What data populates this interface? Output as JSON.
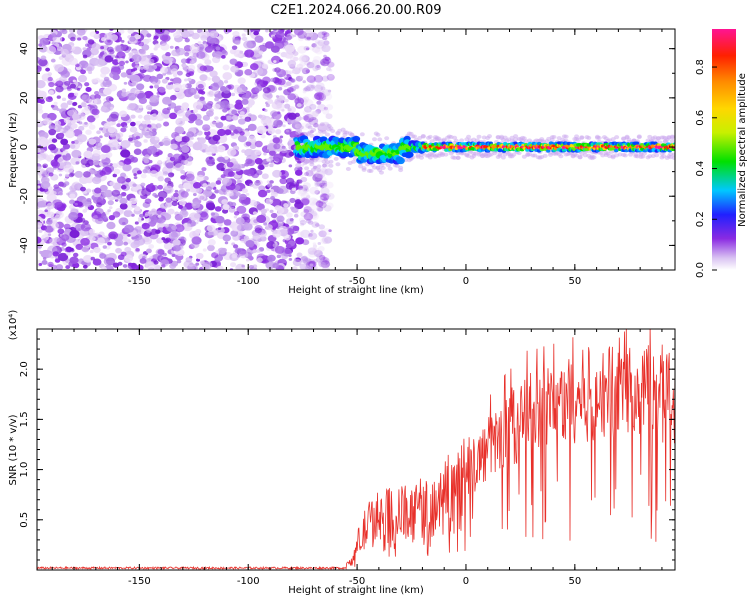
{
  "title": "C2E1.2024.066.20.00.R09",
  "colors": {
    "snr_line": "#e8302a",
    "speckle_low": "#8a2be2",
    "speckle_light": "#d9c2f2",
    "axis": "#000000"
  },
  "chart_data": [
    {
      "type": "heatmap",
      "xlabel": "Height of straight line (km)",
      "ylabel": "Frequency (Hz)",
      "xlim": [
        -197,
        96
      ],
      "ylim": [
        -50,
        48
      ],
      "x_ticks": [
        -150,
        -100,
        -50,
        0,
        50
      ],
      "x_tick_labels": [
        "-150",
        "-100",
        "-50",
        "0",
        "50"
      ],
      "y_ticks": [
        -40,
        -20,
        0,
        20,
        40
      ],
      "y_tick_labels": [
        "-40",
        "-20",
        "0",
        "20",
        "40"
      ],
      "noise_region_x": [
        -197,
        -68
      ],
      "signal_center_frequency": 0,
      "signal_start_x": -78,
      "colorbar": {
        "label": "Normalized spectral amplitude",
        "range": [
          0.0,
          0.95
        ],
        "ticks": [
          0.0,
          0.2,
          0.4,
          0.6,
          0.8
        ],
        "tick_labels": [
          "0.0",
          "0.2",
          "0.4",
          "0.6",
          "0.8"
        ],
        "colormap": "rainbow"
      }
    },
    {
      "type": "line",
      "xlabel": "Height of straight line (km)",
      "ylabel": "SNR (10 * v/v)",
      "y_multiplier": "(x10⁴)",
      "xlim": [
        -197,
        96
      ],
      "ylim": [
        0,
        2.4
      ],
      "x_ticks": [
        -150,
        -100,
        -50,
        0,
        50
      ],
      "x_tick_labels": [
        "-150",
        "-100",
        "-50",
        "0",
        "50"
      ],
      "y_ticks": [
        0.5,
        1.0,
        1.5,
        2.0
      ],
      "y_tick_labels": [
        "0.5",
        "1.0",
        "1.5",
        "2.0"
      ],
      "series": [
        {
          "color": "#e8302a",
          "envelope": {
            "x": [
              -197,
              -60,
              -52,
              -50,
              -45,
              -40,
              -30,
              -20,
              -10,
              0,
              10,
              20,
              30,
              40,
              50,
              60,
              70,
              80,
              90,
              96
            ],
            "y": [
              0.0,
              0.01,
              0.08,
              0.25,
              0.45,
              0.52,
              0.55,
              0.6,
              0.72,
              0.95,
              1.2,
              1.4,
              1.55,
              1.65,
              1.72,
              1.75,
              1.78,
              1.76,
              1.74,
              1.72
            ]
          }
        }
      ]
    }
  ]
}
